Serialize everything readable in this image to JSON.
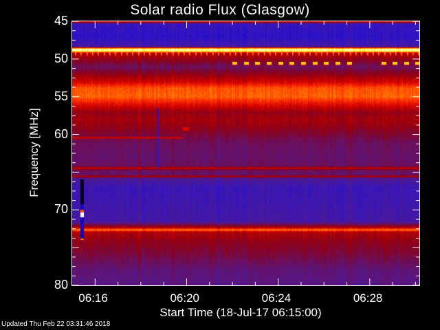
{
  "chart_data": {
    "type": "heatmap",
    "title": "Solar radio Flux (Glasgow)",
    "xlabel": "Start Time (18-Jul-17 06:15:00)",
    "ylabel": "Frequency [MHz]",
    "xlim": [
      "06:15:00",
      "06:30:10"
    ],
    "ylim": [
      80,
      45
    ],
    "x_tick_labels": [
      "06:16",
      "06:20",
      "06:24",
      "06:28"
    ],
    "y_tick_labels": [
      "45",
      "50",
      "55",
      "60",
      "70",
      "80"
    ],
    "colormap": [
      "#000000",
      "#0000a0",
      "#2a12d0",
      "#4a1a9a",
      "#6a1060",
      "#900010",
      "#d00000",
      "#ff3000",
      "#ff8000",
      "#ffff30",
      "#ffffff"
    ],
    "frequency_profile": [
      [
        45.0,
        0.62
      ],
      [
        45.3,
        0.26
      ],
      [
        47.0,
        0.23
      ],
      [
        48.3,
        0.3
      ],
      [
        48.6,
        0.95
      ],
      [
        48.9,
        0.95
      ],
      [
        49.2,
        0.55
      ],
      [
        50.0,
        0.5
      ],
      [
        51.0,
        0.42
      ],
      [
        52.0,
        0.5
      ],
      [
        53.0,
        0.6
      ],
      [
        53.8,
        0.76
      ],
      [
        55.0,
        0.78
      ],
      [
        56.0,
        0.63
      ],
      [
        57.0,
        0.5
      ],
      [
        58.0,
        0.53
      ],
      [
        59.0,
        0.5
      ],
      [
        60.0,
        0.46
      ],
      [
        61.0,
        0.42
      ],
      [
        63.0,
        0.4
      ],
      [
        64.2,
        0.42
      ],
      [
        64.4,
        0.6
      ],
      [
        64.7,
        0.42
      ],
      [
        65.3,
        0.4
      ],
      [
        65.5,
        0.55
      ],
      [
        65.8,
        0.33
      ],
      [
        67.0,
        0.27
      ],
      [
        71.5,
        0.3
      ],
      [
        72.3,
        0.55
      ],
      [
        72.6,
        0.82
      ],
      [
        72.9,
        0.55
      ],
      [
        74.0,
        0.5
      ],
      [
        76.0,
        0.45
      ],
      [
        78.0,
        0.38
      ],
      [
        80.0,
        0.36
      ]
    ],
    "features": [
      {
        "kind": "periodic-ticks",
        "freq_mhz": 49.2,
        "time_start": "06:15:00",
        "time_end": "06:30:10",
        "period_s": 15,
        "level": 0.85
      },
      {
        "kind": "dashes",
        "freq_mhz": 50.6,
        "time_start": "06:22:00",
        "time_end": "06:27:00",
        "period_s": 30,
        "level": 0.88
      },
      {
        "kind": "dashes",
        "freq_mhz": 50.6,
        "time_start": "06:28:30",
        "time_end": "06:30:00",
        "period_s": 30,
        "level": 0.88
      },
      {
        "kind": "burst",
        "freq_mhz": 60.4,
        "time_start": "06:18:15",
        "time_end": "06:18:50",
        "level": 0.93
      },
      {
        "kind": "faint-line",
        "freq_mhz": 60.4,
        "time_start": "06:15:00",
        "time_end": "06:19:50",
        "level": 0.58
      },
      {
        "kind": "dropout",
        "freq_start": 56.5,
        "freq_end": 64.5,
        "time": "06:18:42",
        "level": 0.2
      },
      {
        "kind": "spike",
        "freq_start": 59.0,
        "freq_end": 59.4,
        "time_start": "06:19:50",
        "time_end": "06:20:05",
        "level": 0.62
      },
      {
        "kind": "calibration-column",
        "freq_start": 66.0,
        "freq_end": 74.0,
        "time": "06:15:25"
      }
    ]
  },
  "footer": {
    "updated": "Updated Thu Feb 22 03:31:46 2018"
  }
}
